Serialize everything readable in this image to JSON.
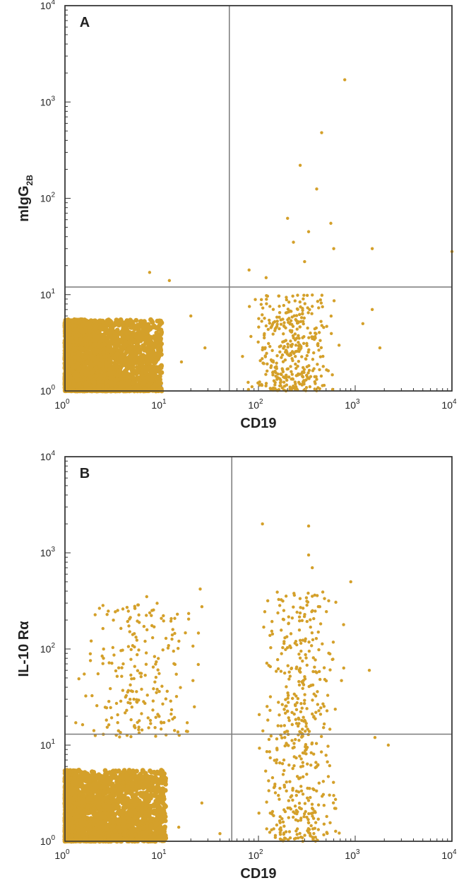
{
  "chart_data": [
    {
      "type": "scatter",
      "panel_label": "A",
      "xlabel": "CD19",
      "ylabel": "mIgG2B",
      "ylabel_main": "mIgG",
      "ylabel_sub": "2B",
      "xscale": "log",
      "yscale": "log",
      "xlim": [
        1,
        10000
      ],
      "ylim": [
        1,
        10000
      ],
      "x_ticks": [
        "10^0",
        "10^1",
        "10^2",
        "10^3",
        "10^4"
      ],
      "y_ticks": [
        "10^0",
        "10^1",
        "10^2",
        "10^3",
        "10^4"
      ],
      "quadrant_gate": {
        "x": 50,
        "y": 12
      },
      "marker_color": "#d4a02a",
      "populations": [
        {
          "name": "",
          "x_range": [
            1,
            10
          ],
          "y_range": [
            1,
            5.5
          ],
          "density": "high",
          "count": 2400
        },
        {
          "name": "",
          "x_range": [
            60,
            800
          ],
          "y_range": [
            1,
            10
          ],
          "density": "medium",
          "count": 380
        }
      ],
      "outliers": [
        [
          780,
          1700
        ],
        [
          450,
          480
        ],
        [
          270,
          220
        ],
        [
          400,
          125
        ],
        [
          560,
          55
        ],
        [
          330,
          45
        ],
        [
          200,
          62
        ],
        [
          300,
          22
        ],
        [
          1500,
          30
        ],
        [
          10000,
          28
        ],
        [
          12,
          14
        ],
        [
          7.5,
          17
        ],
        [
          20,
          6
        ],
        [
          28,
          2.8
        ],
        [
          16,
          2
        ],
        [
          1800,
          2.8
        ],
        [
          1200,
          5
        ],
        [
          1500,
          7
        ],
        [
          80,
          18
        ],
        [
          120,
          15
        ],
        [
          600,
          30
        ],
        [
          230,
          35
        ]
      ]
    },
    {
      "type": "scatter",
      "panel_label": "B",
      "xlabel": "CD19",
      "ylabel": "IL-10 Rα",
      "xscale": "log",
      "yscale": "log",
      "xlim": [
        1,
        10000
      ],
      "ylim": [
        1,
        10000
      ],
      "x_ticks": [
        "10^0",
        "10^1",
        "10^2",
        "10^3",
        "10^4"
      ],
      "y_ticks": [
        "10^0",
        "10^1",
        "10^2",
        "10^3",
        "10^4"
      ],
      "quadrant_gate": {
        "x": 53,
        "y": 13
      },
      "marker_color": "#d4a02a",
      "populations": [
        {
          "name": "",
          "x_range": [
            1,
            11
          ],
          "y_range": [
            1,
            5.5
          ],
          "density": "high",
          "count": 2400
        },
        {
          "name": "",
          "x_range": [
            1,
            40
          ],
          "y_range": [
            12,
            300
          ],
          "density": "low",
          "count": 220
        },
        {
          "name": "",
          "x_range": [
            80,
            900
          ],
          "y_range": [
            1,
            400
          ],
          "density": "medium",
          "count": 480
        }
      ],
      "outliers": [
        [
          110,
          2000
        ],
        [
          330,
          1900
        ],
        [
          360,
          700
        ],
        [
          330,
          950
        ],
        [
          900,
          500
        ],
        [
          25,
          420
        ],
        [
          7,
          350
        ],
        [
          1400,
          60
        ],
        [
          2200,
          10
        ],
        [
          1600,
          12
        ],
        [
          15,
          1.4
        ],
        [
          40,
          1.2
        ],
        [
          26,
          2.5
        ],
        [
          2.5,
          80
        ],
        [
          4,
          70
        ]
      ]
    }
  ]
}
